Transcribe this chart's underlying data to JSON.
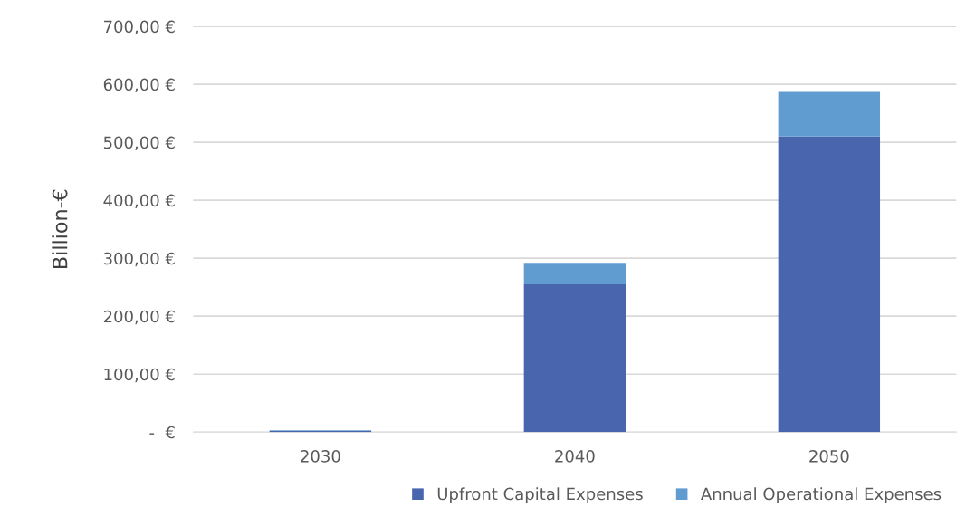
{
  "chart_data": {
    "type": "bar",
    "stacked": true,
    "ylabel": "Billion-€",
    "categories": [
      "2030",
      "2040",
      "2050"
    ],
    "series": [
      {
        "name": "Upfront Capital Expenses",
        "color": "#4865ad",
        "values": [
          2,
          255,
          510
        ]
      },
      {
        "name": "Annual Operational Expenses",
        "color": "#619cd1",
        "values": [
          1,
          37,
          77
        ]
      }
    ],
    "ylim": [
      0,
      700
    ],
    "yticks": [
      {
        "value": 0,
        "label": "-  €"
      },
      {
        "value": 100,
        "label": "100,00 €"
      },
      {
        "value": 200,
        "label": "200,00 €"
      },
      {
        "value": 300,
        "label": "300,00 €"
      },
      {
        "value": 400,
        "label": "400,00 €"
      },
      {
        "value": 500,
        "label": "500,00 €"
      },
      {
        "value": 600,
        "label": "600,00 €"
      },
      {
        "value": 700,
        "label": "700,00 €"
      }
    ],
    "grid": "y",
    "legend": "bottom"
  }
}
